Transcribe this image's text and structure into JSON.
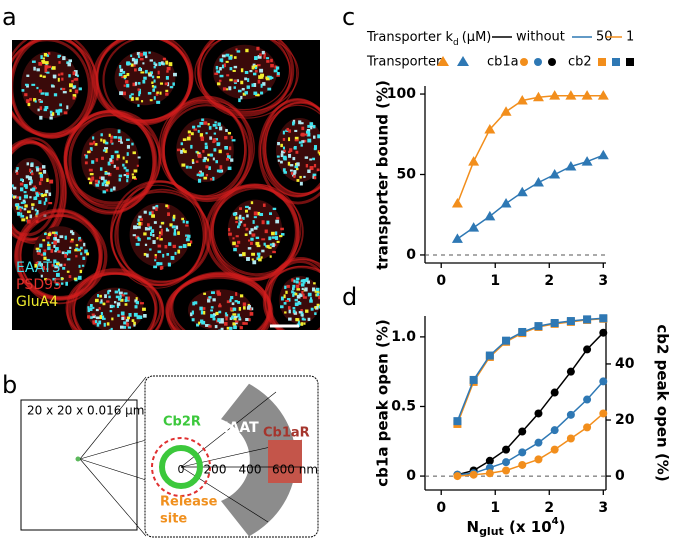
{
  "panel_labels": [
    "a",
    "b",
    "c",
    "d"
  ],
  "image": {
    "channels": [
      {
        "name": "EAAT5",
        "color": "#3fe3ee"
      },
      {
        "name": "PSD95",
        "color": "#e0302c"
      },
      {
        "name": "GluA4",
        "color": "#f2ee2e"
      }
    ]
  },
  "diagram": {
    "box_label": "20 x 20 x 0.016 μm",
    "cb2r": "Cb2R",
    "eaat": "EAAT",
    "cb1ar": "Cb1aR",
    "release_site": [
      "Release",
      "site"
    ],
    "scale_labels": [
      "0",
      "200",
      "400",
      "600 nm"
    ]
  },
  "chart_data": [
    {
      "type": "line",
      "ylabel": "transporter bound (%)",
      "legend": {
        "title": [
          "Transporter k",
          "d",
          "(μM)"
        ],
        "entries": [
          "without",
          "50",
          "1"
        ]
      },
      "xlim": [
        -0.3,
        3.05
      ],
      "xticks": [
        0,
        1,
        2,
        3
      ],
      "ylim": [
        -5,
        105
      ],
      "yticks": [
        0,
        50,
        100
      ],
      "zero_line": true,
      "series": [
        {
          "name": "Transporter",
          "color": "#f28e1c",
          "marker": "triangle",
          "x": [
            0.3,
            0.6,
            0.9,
            1.2,
            1.5,
            1.8,
            2.1,
            2.4,
            2.7,
            3.0
          ],
          "values": [
            32,
            58,
            78,
            89,
            96,
            98,
            99,
            99,
            99,
            99
          ]
        },
        {
          "name": "Transporter",
          "color": "#2e78b4",
          "marker": "triangle",
          "x": [
            0.3,
            0.6,
            0.9,
            1.2,
            1.5,
            1.8,
            2.1,
            2.4,
            2.7,
            3.0
          ],
          "values": [
            10,
            17,
            24,
            32,
            39,
            45,
            50,
            55,
            58,
            62
          ]
        }
      ]
    },
    {
      "type": "line",
      "ylabel": "cb1a peak open (%)",
      "y2label": "cb2 peak open (%)",
      "xlabel": [
        "N",
        "glut",
        " (x 10",
        "4",
        ")"
      ],
      "xlim": [
        -0.3,
        3.05
      ],
      "xticks": [
        0,
        1,
        2,
        3
      ],
      "ylim": [
        -0.1,
        1.15
      ],
      "yticks": [
        0,
        0.5,
        {
          "value": 1,
          "label": "1.0"
        }
      ],
      "y2lim": [
        -4.96,
        57.1
      ],
      "y2ticks": [
        0,
        20,
        40
      ],
      "zero_line": true,
      "series": [
        {
          "name": "cb2",
          "color": "#f28e1c",
          "marker": "square",
          "axis": "y2",
          "x": [
            0.3,
            0.6,
            0.9,
            1.2,
            1.5,
            1.8,
            2.1,
            2.4,
            2.7,
            3.0
          ],
          "values": [
            18.6,
            33.6,
            42.5,
            47.9,
            51,
            53.2,
            54.3,
            55,
            55.7,
            56.1
          ]
        },
        {
          "name": "cb2",
          "color": "#2e78b4",
          "marker": "square",
          "axis": "y2",
          "x": [
            0.3,
            0.6,
            0.9,
            1.2,
            1.5,
            1.8,
            2.1,
            2.4,
            2.7,
            3.0
          ],
          "values": [
            19.6,
            34.3,
            43,
            48.3,
            51.4,
            53.5,
            54.6,
            55.3,
            55.9,
            56.3
          ]
        },
        {
          "name": "cb1a",
          "color": "#000000",
          "marker": "circle",
          "x": [
            0.3,
            0.6,
            0.9,
            1.2,
            1.5,
            1.8,
            2.1,
            2.4,
            2.7,
            3.0
          ],
          "values": [
            0.01,
            0.04,
            0.11,
            0.19,
            0.32,
            0.45,
            0.6,
            0.75,
            0.91,
            1.03
          ]
        },
        {
          "name": "cb1a",
          "color": "#2e78b4",
          "marker": "circle",
          "x": [
            0.3,
            0.6,
            0.9,
            1.2,
            1.5,
            1.8,
            2.1,
            2.4,
            2.7,
            3.0
          ],
          "values": [
            0.01,
            0.02,
            0.06,
            0.1,
            0.17,
            0.24,
            0.33,
            0.44,
            0.55,
            0.68
          ]
        },
        {
          "name": "cb1a",
          "color": "#f28e1c",
          "marker": "circle",
          "x": [
            0.3,
            0.6,
            0.9,
            1.2,
            1.5,
            1.8,
            2.1,
            2.4,
            2.7,
            3.0
          ],
          "values": [
            0,
            0.01,
            0.02,
            0.04,
            0.08,
            0.12,
            0.19,
            0.27,
            0.35,
            0.45
          ]
        }
      ]
    }
  ]
}
